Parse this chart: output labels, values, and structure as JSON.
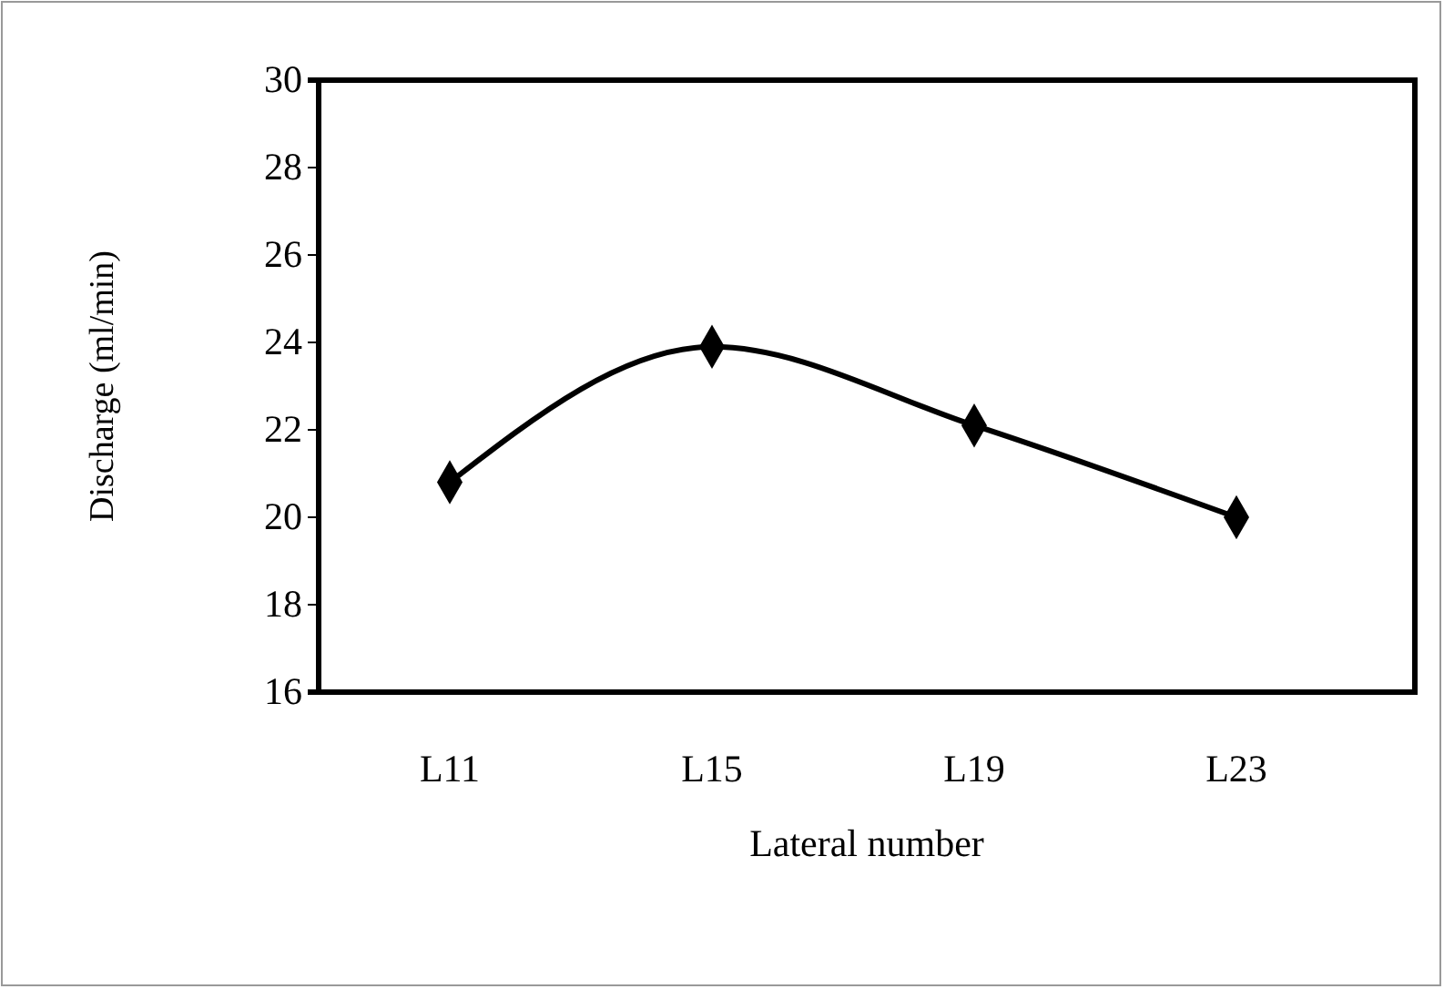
{
  "chart_data": {
    "type": "line",
    "xlabel": "Lateral number",
    "ylabel": "Discharge (ml/min)",
    "categories": [
      "L11",
      "L15",
      "L19",
      "L23"
    ],
    "series": [
      {
        "color": "#000000",
        "values": [
          20.8,
          23.9,
          22.1,
          20.0
        ]
      }
    ],
    "ylim": [
      16,
      30
    ],
    "yticks": [
      16,
      18,
      20,
      22,
      24,
      26,
      28,
      30
    ],
    "grid": false,
    "marker": "diamond",
    "line_style": "solid"
  }
}
